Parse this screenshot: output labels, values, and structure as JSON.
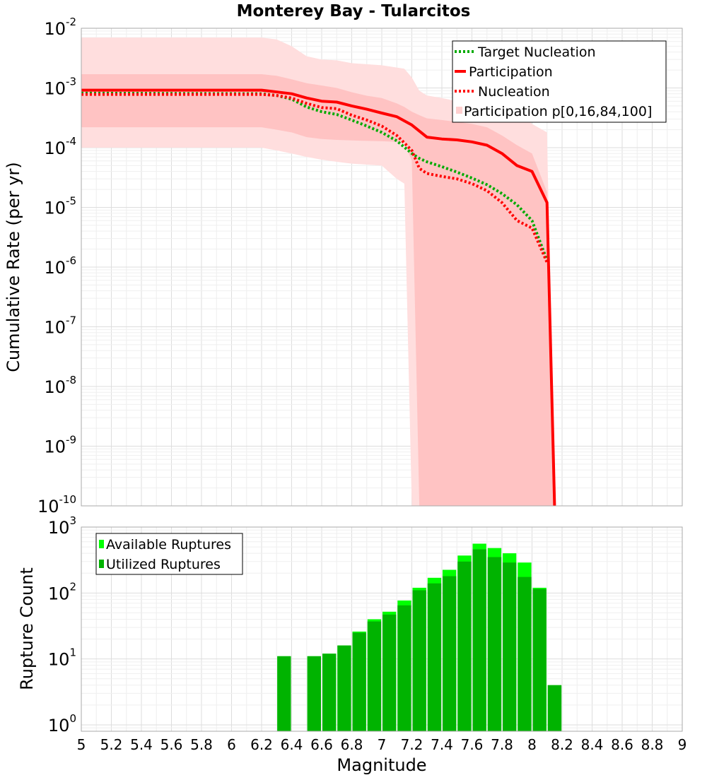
{
  "chart_data": [
    {
      "type": "line",
      "title": "Monterey Bay - Tularcitos",
      "ylabel": "Cumulative Rate (per yr)",
      "xlim": [
        5,
        9
      ],
      "ylim": [
        1e-10,
        0.01
      ],
      "yscale": "log",
      "grid": true,
      "legend_position": "top-right",
      "ytick_labels": [
        {
          "value": 1e-10,
          "base": "10",
          "exp": "-10"
        },
        {
          "value": 1e-09,
          "base": "10",
          "exp": "-9"
        },
        {
          "value": 1e-08,
          "base": "10",
          "exp": "-8"
        },
        {
          "value": 1e-07,
          "base": "10",
          "exp": "-7"
        },
        {
          "value": 1e-06,
          "base": "10",
          "exp": "-6"
        },
        {
          "value": 1e-05,
          "base": "10",
          "exp": "-5"
        },
        {
          "value": 0.0001,
          "base": "10",
          "exp": "-4"
        },
        {
          "value": 0.001,
          "base": "10",
          "exp": "-3"
        },
        {
          "value": 0.01,
          "base": "10",
          "exp": "-2"
        }
      ],
      "series": [
        {
          "name": "Target Nucleation",
          "color": "#00aa00",
          "style": "dotted",
          "x": [
            5.0,
            6.2,
            6.3,
            6.4,
            6.5,
            6.6,
            6.7,
            6.8,
            6.9,
            7.0,
            7.1,
            7.2,
            7.25,
            7.3,
            7.4,
            7.5,
            7.6,
            7.7,
            7.8,
            7.9,
            8.0,
            8.1
          ],
          "y": [
            0.00082,
            0.0008,
            0.00075,
            0.00065,
            0.00048,
            0.0004,
            0.00036,
            0.00029,
            0.00023,
            0.00018,
            0.00013,
            8e-05,
            6.6e-05,
            5.8e-05,
            4.8e-05,
            3.9e-05,
            3.1e-05,
            2.4e-05,
            1.7e-05,
            1.1e-05,
            6e-06,
            1.3e-06
          ]
        },
        {
          "name": "Participation",
          "color": "#ff0000",
          "style": "solid",
          "x": [
            5.0,
            6.2,
            6.4,
            6.5,
            6.6,
            6.7,
            6.8,
            6.9,
            7.0,
            7.1,
            7.2,
            7.3,
            7.4,
            7.5,
            7.6,
            7.7,
            7.8,
            7.9,
            8.0,
            8.1,
            8.15
          ],
          "y": [
            0.00092,
            0.00092,
            0.0008,
            0.00068,
            0.0006,
            0.00058,
            0.0005,
            0.00044,
            0.00038,
            0.00033,
            0.00024,
            0.00015,
            0.00014,
            0.000135,
            0.000125,
            0.00011,
            8e-05,
            5e-05,
            4e-05,
            1.2e-05,
            1e-10
          ]
        },
        {
          "name": "Nucleation",
          "color": "#ff0000",
          "style": "dotted",
          "x": [
            5.0,
            6.2,
            6.3,
            6.4,
            6.5,
            6.6,
            6.7,
            6.8,
            6.9,
            7.0,
            7.1,
            7.2,
            7.25,
            7.3,
            7.4,
            7.5,
            7.6,
            7.7,
            7.8,
            7.9,
            8.0,
            8.1
          ],
          "y": [
            0.00078,
            0.00078,
            0.00075,
            0.00068,
            0.00055,
            0.00047,
            0.00045,
            0.00035,
            0.00029,
            0.00023,
            0.00016,
            9e-05,
            4.5e-05,
            3.7e-05,
            3.3e-05,
            3e-05,
            2.5e-05,
            1.9e-05,
            1.2e-05,
            6e-06,
            4.5e-06,
            1.2e-06
          ]
        }
      ],
      "bands": {
        "name": "Participation p[0,16,84,100]",
        "outer_color": "#ffdede",
        "inner_color": "#ffc3c3",
        "x": [
          5.0,
          6.0,
          6.2,
          6.3,
          6.4,
          6.5,
          6.6,
          6.7,
          6.8,
          6.9,
          7.0,
          7.1,
          7.15,
          7.2,
          7.25,
          7.3,
          7.4,
          7.5,
          7.6,
          7.7,
          7.8,
          7.9,
          8.0,
          8.1,
          8.15
        ],
        "p0": [
          0.0001,
          0.0001,
          0.0001,
          9e-05,
          8e-05,
          7e-05,
          6.3e-05,
          5.8e-05,
          5.4e-05,
          5.2e-05,
          5e-05,
          3e-05,
          2.5e-05,
          1e-10,
          1e-10,
          1e-10,
          1e-10,
          1e-10,
          1e-10,
          1e-10,
          1e-10,
          1e-10,
          1e-10,
          1e-10,
          1e-10
        ],
        "p16": [
          0.00022,
          0.00022,
          0.00022,
          0.0002,
          0.00018,
          0.00015,
          0.00014,
          0.000135,
          0.000132,
          0.00013,
          0.000128,
          0.000125,
          0.00012,
          6e-05,
          1e-10,
          1e-10,
          1e-10,
          1e-10,
          1e-10,
          1e-10,
          1e-10,
          1e-10,
          1e-10,
          1e-10,
          1e-10
        ],
        "p84": [
          0.0017,
          0.0017,
          0.0017,
          0.0016,
          0.0014,
          0.0012,
          0.0011,
          0.001,
          0.00085,
          0.00074,
          0.00068,
          0.00055,
          0.00048,
          0.0004,
          0.00035,
          0.00031,
          0.00029,
          0.00027,
          0.00025,
          0.00022,
          0.00016,
          0.00011,
          8e-05,
          1.8e-05,
          1e-10
        ],
        "p100": [
          0.007,
          0.007,
          0.007,
          0.0065,
          0.005,
          0.0034,
          0.003,
          0.0029,
          0.0026,
          0.0025,
          0.0024,
          0.0022,
          0.0021,
          0.0015,
          0.0009,
          0.00075,
          0.00068,
          0.0006,
          0.0006,
          0.00055,
          0.0005,
          0.0004,
          0.00025,
          0.00018,
          1e-10
        ]
      }
    },
    {
      "type": "bar",
      "xlabel": "Magnitude",
      "ylabel": "Rupture Count",
      "xlim": [
        5,
        9
      ],
      "ylim": [
        0.8,
        1000
      ],
      "yscale": "log",
      "grid": true,
      "legend_position": "top-left",
      "bar_width": 0.1,
      "xtick_labels": [
        "5",
        "5.2",
        "5.4",
        "5.6",
        "5.8",
        "6",
        "6.2",
        "6.4",
        "6.6",
        "6.8",
        "7",
        "7.2",
        "7.4",
        "7.6",
        "7.8",
        "8",
        "8.2",
        "8.4",
        "8.6",
        "8.8",
        "9"
      ],
      "ytick_labels": [
        {
          "value": 1,
          "base": "10",
          "exp": "0"
        },
        {
          "value": 10,
          "base": "10",
          "exp": "1"
        },
        {
          "value": 100,
          "base": "10",
          "exp": "2"
        },
        {
          "value": 1000,
          "base": "10",
          "exp": "3"
        }
      ],
      "centers": [
        6.35,
        6.55,
        6.65,
        6.75,
        6.85,
        6.95,
        7.05,
        7.15,
        7.25,
        7.35,
        7.45,
        7.55,
        7.65,
        7.75,
        7.85,
        7.95,
        8.05,
        8.15
      ],
      "series": [
        {
          "name": "Available Ruptures",
          "color": "#00ff00",
          "values": [
            11,
            11,
            12,
            16,
            26,
            40,
            52,
            77,
            120,
            170,
            225,
            370,
            560,
            480,
            400,
            290,
            120,
            4
          ]
        },
        {
          "name": "Utilized Ruptures",
          "color": "#00b300",
          "values": [
            11,
            11,
            12,
            16,
            25,
            37,
            47,
            65,
            110,
            140,
            180,
            300,
            460,
            350,
            290,
            175,
            115,
            4
          ]
        }
      ]
    }
  ]
}
